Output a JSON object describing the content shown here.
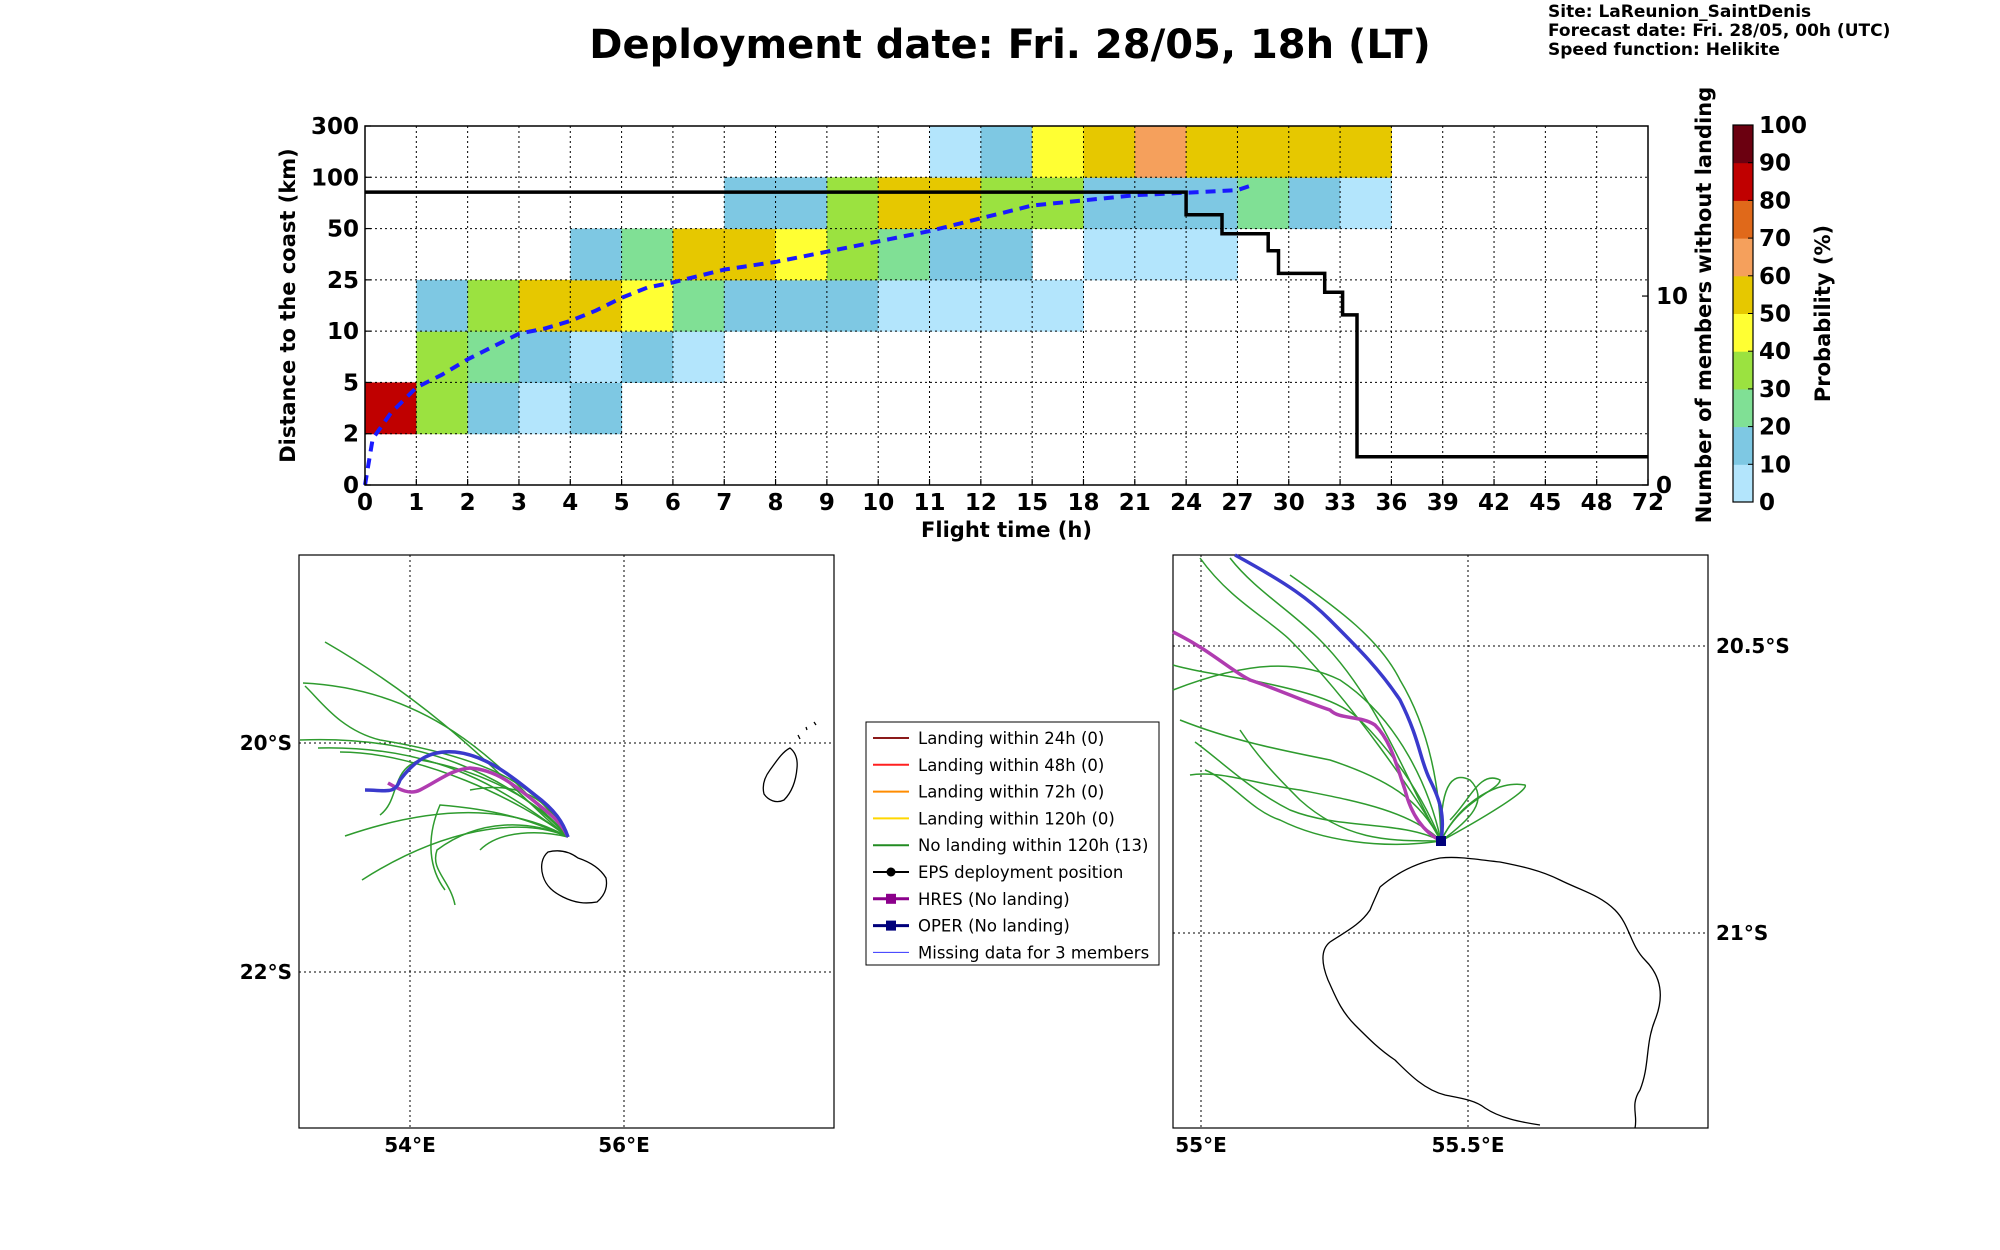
{
  "title": "Deployment date: Fri. 28/05, 18h (LT)",
  "info": {
    "site": "Site: LaReunion_SaintDenis",
    "forecast": "Forecast date: Fri. 28/05, 00h (UTC)",
    "speed": "Speed function: Helikite"
  },
  "colors": {
    "c0": "#b3e5fc",
    "c10": "#7ec8e3",
    "c20": "#80e095",
    "c30": "#9be240",
    "c40": "#ffff33",
    "c50": "#e6c800",
    "c60": "#f5a05c",
    "c70": "#e0691a",
    "c80": "#c00000",
    "c90": "#6b0010",
    "median": "#1a1aff",
    "members": "#000000"
  },
  "chart_data": [
    {
      "type": "heatmap",
      "xlabel": "Flight time (h)",
      "ylabel": "Distance to the coast (km)",
      "y2label": "Number of members without landing",
      "colorbar_label": "Probability (%)",
      "x_tick_labels": [
        "0",
        "1",
        "2",
        "3",
        "4",
        "5",
        "6",
        "7",
        "8",
        "9",
        "10",
        "11",
        "12",
        "15",
        "18",
        "21",
        "24",
        "27",
        "30",
        "33",
        "36",
        "39",
        "42",
        "45",
        "48",
        "72"
      ],
      "y_tick_labels": [
        "0",
        "2",
        "5",
        "10",
        "25",
        "50",
        "100",
        "300"
      ],
      "y2_tick_labels": [
        "0",
        "10"
      ],
      "y2_range": [
        0,
        19
      ],
      "colorbar_ticks": [
        "0",
        "10",
        "20",
        "30",
        "40",
        "50",
        "60",
        "70",
        "80",
        "90",
        "100"
      ],
      "grid": true,
      "cells": [
        {
          "x": 0,
          "y": 1,
          "p": 80
        },
        {
          "x": 1,
          "y": 1,
          "p": 30
        },
        {
          "x": 1,
          "y": 2,
          "p": 30
        },
        {
          "x": 1,
          "y": 3,
          "p": 10
        },
        {
          "x": 2,
          "y": 1,
          "p": 10
        },
        {
          "x": 2,
          "y": 2,
          "p": 20
        },
        {
          "x": 2,
          "y": 3,
          "p": 30
        },
        {
          "x": 3,
          "y": 1,
          "p": 0
        },
        {
          "x": 3,
          "y": 2,
          "p": 10
        },
        {
          "x": 3,
          "y": 3,
          "p": 50
        },
        {
          "x": 4,
          "y": 1,
          "p": 10
        },
        {
          "x": 4,
          "y": 2,
          "p": 0
        },
        {
          "x": 4,
          "y": 3,
          "p": 50
        },
        {
          "x": 4,
          "y": 4,
          "p": 10
        },
        {
          "x": 5,
          "y": 2,
          "p": 10
        },
        {
          "x": 5,
          "y": 3,
          "p": 40
        },
        {
          "x": 5,
          "y": 4,
          "p": 20
        },
        {
          "x": 6,
          "y": 2,
          "p": 0
        },
        {
          "x": 6,
          "y": 3,
          "p": 20
        },
        {
          "x": 6,
          "y": 4,
          "p": 50
        },
        {
          "x": 7,
          "y": 3,
          "p": 10
        },
        {
          "x": 7,
          "y": 4,
          "p": 50
        },
        {
          "x": 7,
          "y": 5,
          "p": 10
        },
        {
          "x": 8,
          "y": 3,
          "p": 10
        },
        {
          "x": 8,
          "y": 4,
          "p": 40
        },
        {
          "x": 8,
          "y": 5,
          "p": 10
        },
        {
          "x": 9,
          "y": 3,
          "p": 10
        },
        {
          "x": 9,
          "y": 4,
          "p": 30
        },
        {
          "x": 9,
          "y": 5,
          "p": 30
        },
        {
          "x": 10,
          "y": 3,
          "p": 0
        },
        {
          "x": 10,
          "y": 4,
          "p": 20
        },
        {
          "x": 10,
          "y": 5,
          "p": 50
        },
        {
          "x": 11,
          "y": 3,
          "p": 0
        },
        {
          "x": 11,
          "y": 4,
          "p": 10
        },
        {
          "x": 11,
          "y": 5,
          "p": 50
        },
        {
          "x": 11,
          "y": 6,
          "p": 0
        },
        {
          "x": 12,
          "y": 3,
          "p": 0
        },
        {
          "x": 12,
          "y": 4,
          "p": 10
        },
        {
          "x": 12,
          "y": 5,
          "p": 30
        },
        {
          "x": 12,
          "y": 6,
          "p": 10
        },
        {
          "x": 13,
          "y": 3,
          "p": 0
        },
        {
          "x": 13,
          "y": 5,
          "p": 30
        },
        {
          "x": 13,
          "y": 6,
          "p": 40
        },
        {
          "x": 14,
          "y": 4,
          "p": 0
        },
        {
          "x": 14,
          "y": 5,
          "p": 10
        },
        {
          "x": 14,
          "y": 6,
          "p": 50
        },
        {
          "x": 15,
          "y": 4,
          "p": 0
        },
        {
          "x": 15,
          "y": 5,
          "p": 10
        },
        {
          "x": 15,
          "y": 6,
          "p": 60
        },
        {
          "x": 16,
          "y": 4,
          "p": 0
        },
        {
          "x": 16,
          "y": 5,
          "p": 10
        },
        {
          "x": 16,
          "y": 6,
          "p": 50
        },
        {
          "x": 17,
          "y": 5,
          "p": 20
        },
        {
          "x": 17,
          "y": 6,
          "p": 50
        },
        {
          "x": 18,
          "y": 5,
          "p": 10
        },
        {
          "x": 18,
          "y": 6,
          "p": 50
        },
        {
          "x": 19,
          "y": 5,
          "p": 0
        },
        {
          "x": 19,
          "y": 6,
          "p": 50
        }
      ],
      "median_curve": [
        [
          0,
          0
        ],
        [
          0.15,
          0.9
        ],
        [
          0.5,
          1.4
        ],
        [
          1,
          1.9
        ],
        [
          1.5,
          2.15
        ],
        [
          2,
          2.45
        ],
        [
          2.5,
          2.7
        ],
        [
          3,
          2.95
        ],
        [
          3.5,
          3.05
        ],
        [
          4,
          3.2
        ],
        [
          4.5,
          3.4
        ],
        [
          5,
          3.65
        ],
        [
          5.5,
          3.85
        ],
        [
          6,
          3.95
        ],
        [
          7,
          4.2
        ],
        [
          8,
          4.35
        ],
        [
          9,
          4.55
        ],
        [
          10,
          4.75
        ],
        [
          11,
          4.95
        ],
        [
          12,
          5.2
        ],
        [
          13,
          5.45
        ],
        [
          14,
          5.55
        ],
        [
          15,
          5.65
        ],
        [
          16,
          5.7
        ],
        [
          17,
          5.75
        ],
        [
          17.3,
          5.85
        ]
      ],
      "members_step": [
        [
          0,
          15.5
        ],
        [
          16,
          15.5
        ],
        [
          16,
          14.3
        ],
        [
          16.7,
          14.3
        ],
        [
          16.7,
          13.3
        ],
        [
          17.6,
          13.3
        ],
        [
          17.6,
          12.4
        ],
        [
          17.8,
          12.4
        ],
        [
          17.8,
          11.2
        ],
        [
          18.7,
          11.2
        ],
        [
          18.7,
          10.2
        ],
        [
          19.05,
          10.2
        ],
        [
          19.05,
          9
        ],
        [
          19.33,
          9
        ],
        [
          19.33,
          1.5
        ],
        [
          25,
          1.5
        ]
      ]
    }
  ],
  "legend": [
    {
      "label": "Landing within 24h (0)",
      "color": "#8b1a1a",
      "marker": "none",
      "width": 2
    },
    {
      "label": "Landing within 48h (0)",
      "color": "#ff2020",
      "marker": "none",
      "width": 2
    },
    {
      "label": "Landing within 72h (0)",
      "color": "#ff8c00",
      "marker": "none",
      "width": 2
    },
    {
      "label": "Landing within 120h (0)",
      "color": "#ffd700",
      "marker": "none",
      "width": 2
    },
    {
      "label": "No landing within 120h (13)",
      "color": "#228b22",
      "marker": "none",
      "width": 2
    },
    {
      "label": "EPS deployment position",
      "color": "#000000",
      "marker": "circle",
      "width": 2
    },
    {
      "label": "HRES (No landing)",
      "color": "#8b008b",
      "marker": "square",
      "width": 3
    },
    {
      "label": "OPER (No landing)",
      "color": "#00007b",
      "marker": "square",
      "width": 3
    },
    {
      "label": "Missing data for 3 members",
      "color": "#3333ff",
      "marker": "none",
      "width": 1
    }
  ],
  "maps": {
    "left": {
      "x_ticks": [
        "54°E",
        "56°E"
      ],
      "y_ticks": [
        "20°S",
        "22°S"
      ]
    },
    "right": {
      "x_ticks": [
        "55°E",
        "55.5°E"
      ],
      "y_ticks": [
        "20.5°S",
        "21°S"
      ]
    }
  }
}
